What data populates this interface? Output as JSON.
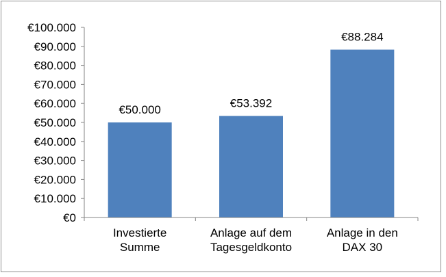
{
  "chart_data": {
    "type": "bar",
    "title": "",
    "xlabel": "",
    "ylabel": "",
    "categories": [
      [
        "Investierte",
        "Summe"
      ],
      [
        "Anlage auf dem",
        "Tagesgeldkonto"
      ],
      [
        "Anlage in den",
        "DAX 30"
      ]
    ],
    "values": [
      50000,
      53392,
      88284
    ],
    "data_labels": [
      "€50.000",
      "€53.392",
      "€88.284"
    ],
    "ylim": [
      0,
      100000
    ],
    "y_ticks": [
      0,
      10000,
      20000,
      30000,
      40000,
      50000,
      60000,
      70000,
      80000,
      90000,
      100000
    ],
    "y_tick_labels": [
      "€0",
      "€10.000",
      "€20.000",
      "€30.000",
      "€40.000",
      "€50.000",
      "€60.000",
      "€70.000",
      "€80.000",
      "€90.000",
      "€100.000"
    ],
    "grid": false,
    "legend": "none",
    "bar_color": "#4f81bd",
    "axis_color": "#868686"
  }
}
